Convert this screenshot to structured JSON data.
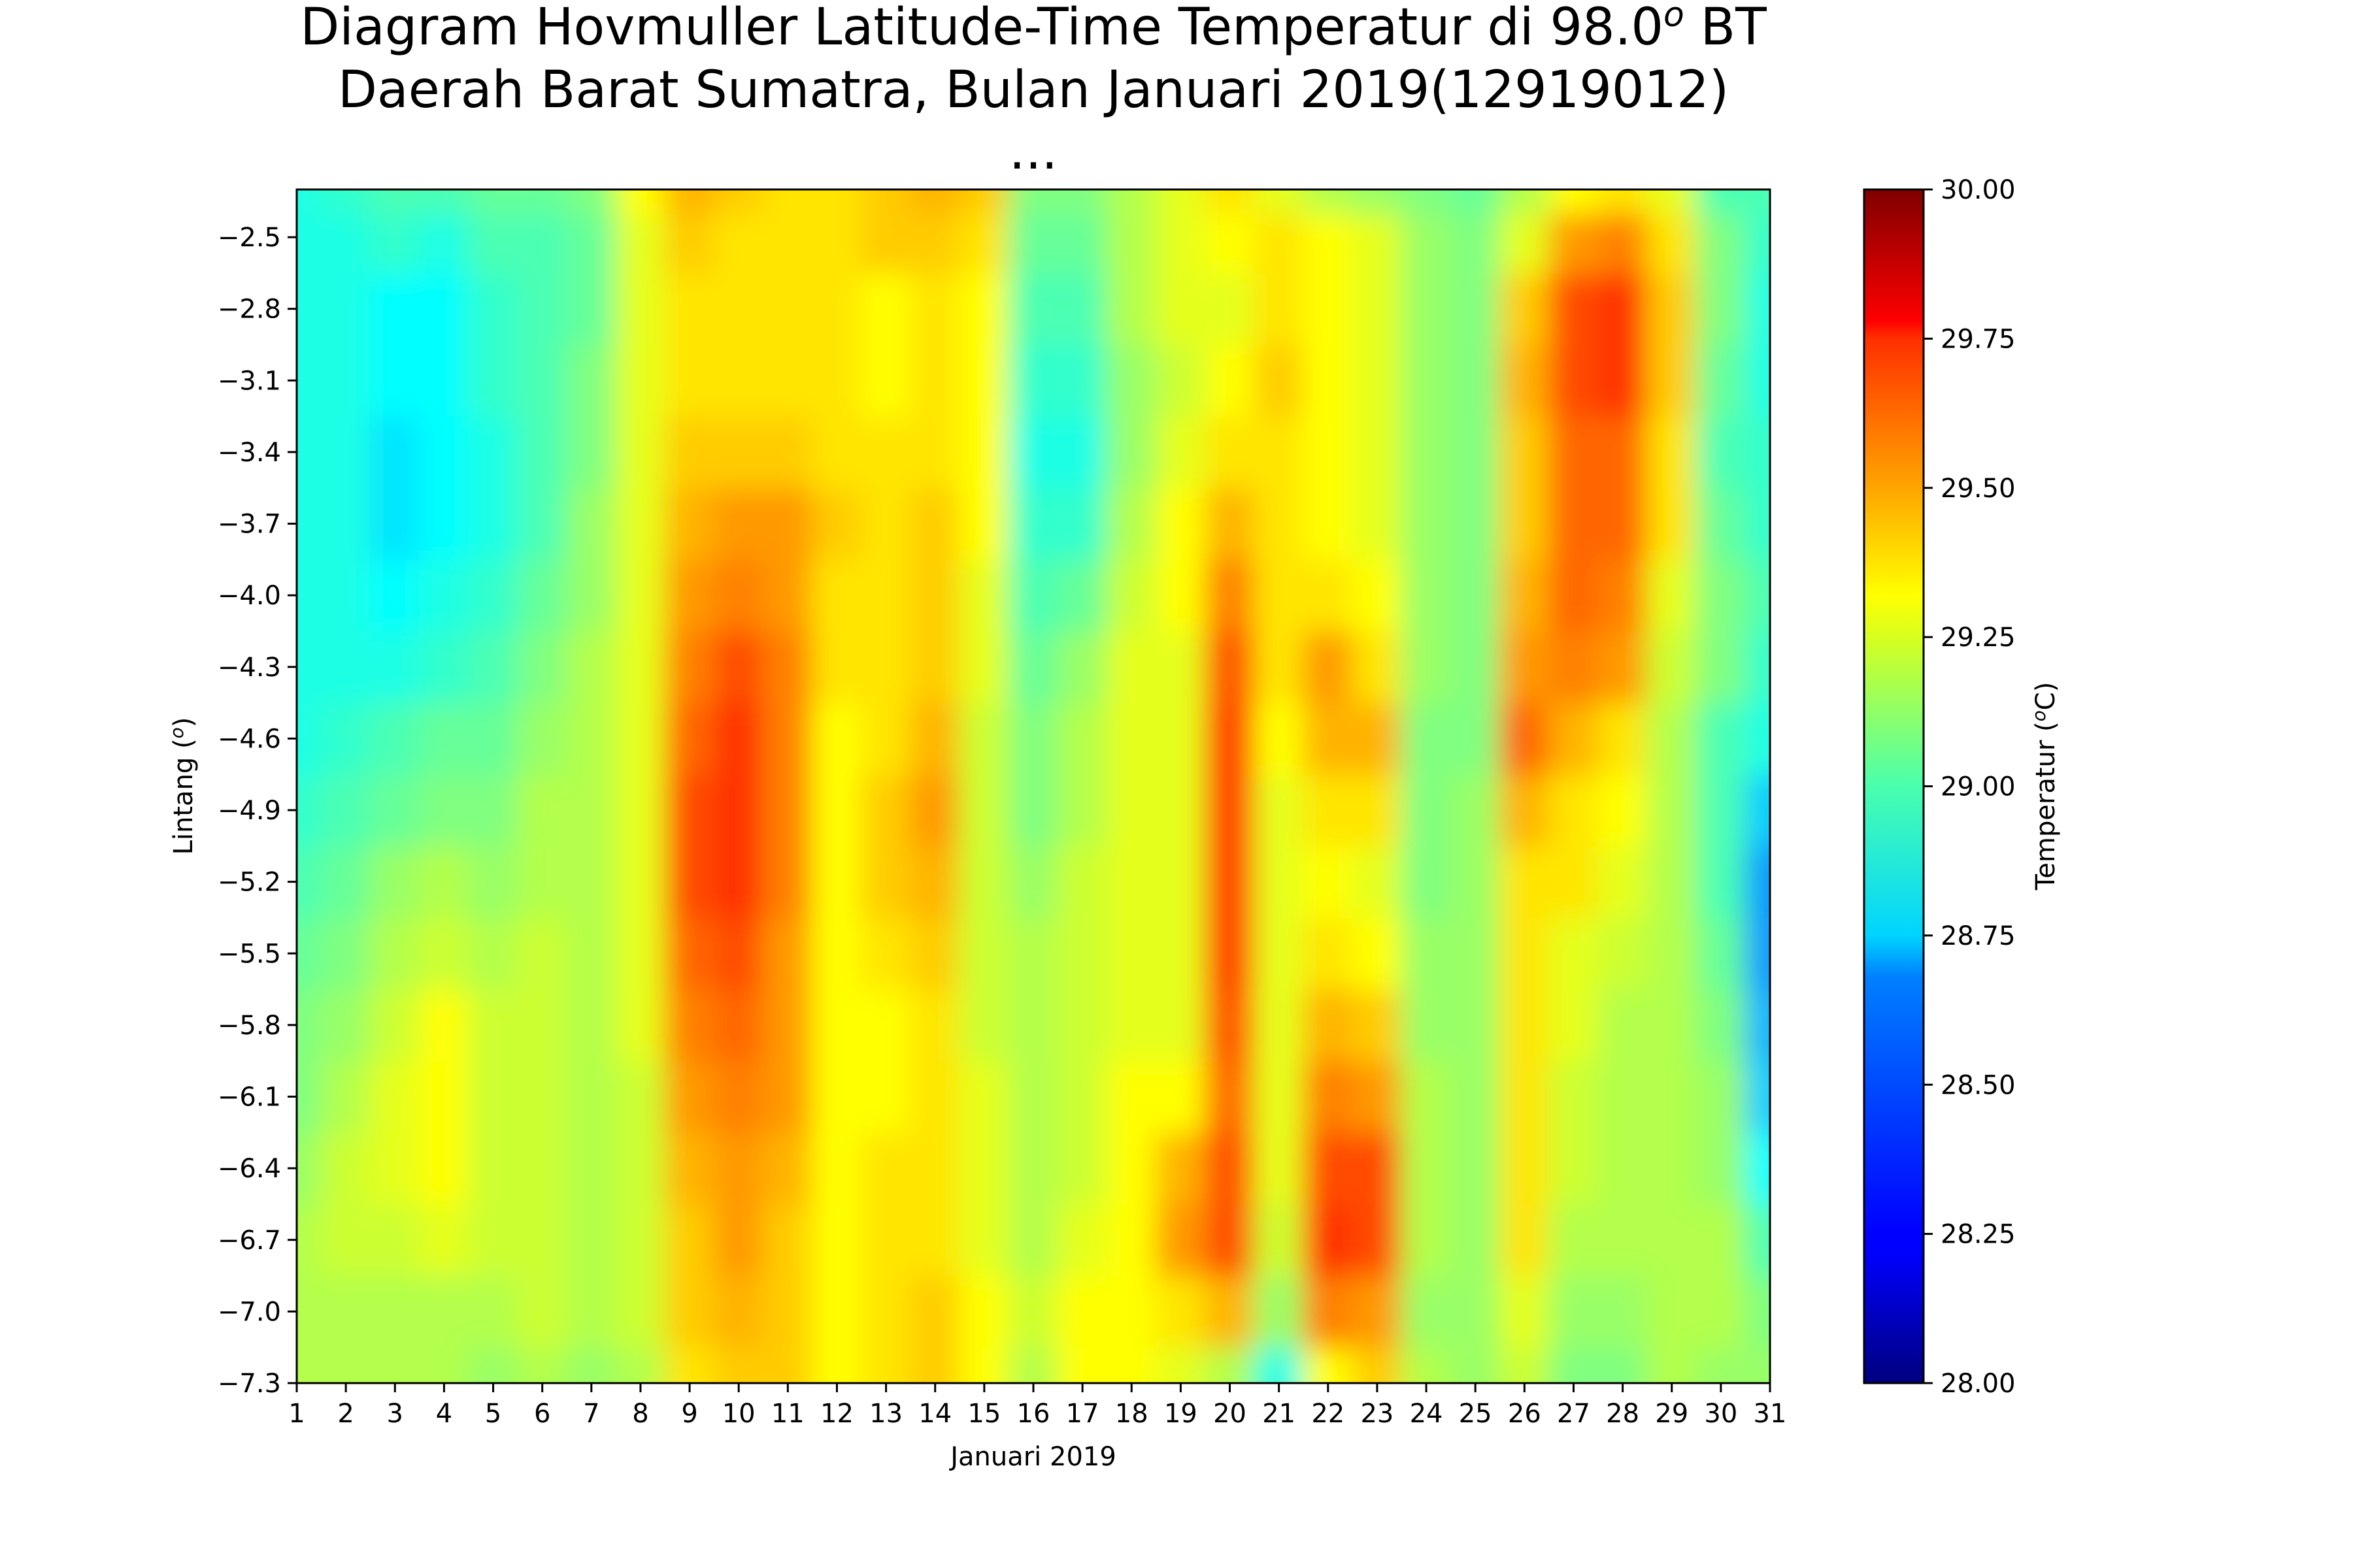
{
  "chart_data": {
    "type": "heatmap",
    "title": {
      "line1_main": "Diagram Hovmuller Latitude-Time Temperatur di 98.0",
      "line1_sup": "o",
      "line1_tail": " BT",
      "line2": "Daerah Barat Sumatra, Bulan Januari 2019(12919012)",
      "line3": "..."
    },
    "xlabel": "Januari 2019",
    "ylabel_main": "Lintang (",
    "ylabel_sup": "o",
    "ylabel_tail": ")",
    "x_ticks": [
      "1",
      "2",
      "3",
      "4",
      "5",
      "6",
      "7",
      "8",
      "9",
      "10",
      "11",
      "12",
      "13",
      "14",
      "15",
      "16",
      "17",
      "18",
      "19",
      "20",
      "21",
      "22",
      "23",
      "24",
      "25",
      "26",
      "27",
      "28",
      "29",
      "30",
      "31"
    ],
    "x_range": [
      1,
      31
    ],
    "y_ticks": [
      "−2.5",
      "−2.8",
      "−3.1",
      "−3.4",
      "−3.7",
      "−4.0",
      "−4.3",
      "−4.6",
      "−4.9",
      "−5.2",
      "−5.5",
      "−5.8",
      "−6.1",
      "−6.4",
      "−6.7",
      "−7.0",
      "−7.3"
    ],
    "y_tick_values": [
      -2.5,
      -2.8,
      -3.1,
      -3.4,
      -3.7,
      -4.0,
      -4.3,
      -4.6,
      -4.9,
      -5.2,
      -5.5,
      -5.8,
      -6.1,
      -6.4,
      -6.7,
      -7.0,
      -7.3
    ],
    "y_range": [
      -7.3,
      -2.3
    ],
    "colorbar": {
      "label_main": "Temperatur (",
      "label_sup": "o",
      "label_tail": "C)",
      "ticks": [
        "28.00",
        "28.25",
        "28.50",
        "28.75",
        "29.00",
        "29.25",
        "29.50",
        "29.75",
        "30.00"
      ],
      "tick_values": [
        28.0,
        28.25,
        28.5,
        28.75,
        29.0,
        29.25,
        29.5,
        29.75,
        30.0
      ],
      "range": [
        28.0,
        30.0
      ],
      "colormap": "jet"
    },
    "y_grid": [
      -7.3,
      -7.0,
      -6.7,
      -6.4,
      -6.1,
      -5.8,
      -5.5,
      -5.2,
      -4.9,
      -4.6,
      -4.3,
      -4.0,
      -3.7,
      -3.4,
      -3.1,
      -2.8,
      -2.5,
      -2.3
    ],
    "days": [
      1,
      2,
      3,
      4,
      5,
      6,
      7,
      8,
      9,
      10,
      11,
      12,
      13,
      14,
      15,
      16,
      17,
      18,
      19,
      20,
      21,
      22,
      23,
      24,
      25,
      26,
      27,
      28,
      29,
      30,
      31
    ],
    "temperature_rows": [
      [
        29.1,
        29.1,
        29.1,
        29.1,
        29.05,
        29.1,
        29.05,
        29.1,
        29.3,
        29.35,
        29.35,
        29.25,
        29.3,
        29.35,
        29.25,
        29.1,
        29.25,
        29.25,
        29.2,
        29.1,
        28.8,
        29.25,
        29.35,
        29.1,
        29.05,
        29.15,
        29.0,
        29.0,
        29.1,
        29.05,
        29.05
      ],
      [
        29.1,
        29.1,
        29.1,
        29.1,
        29.1,
        29.15,
        29.1,
        29.15,
        29.35,
        29.4,
        29.35,
        29.25,
        29.3,
        29.35,
        29.25,
        29.15,
        29.25,
        29.25,
        29.3,
        29.4,
        29.05,
        29.5,
        29.45,
        29.05,
        29.05,
        29.2,
        29.05,
        29.05,
        29.1,
        29.1,
        29.0
      ],
      [
        29.1,
        29.15,
        29.15,
        29.2,
        29.15,
        29.15,
        29.1,
        29.15,
        29.35,
        29.45,
        29.35,
        29.25,
        29.3,
        29.3,
        29.2,
        29.1,
        29.2,
        29.25,
        29.45,
        29.6,
        29.15,
        29.65,
        29.6,
        29.1,
        29.05,
        29.3,
        29.1,
        29.1,
        29.1,
        29.1,
        28.9
      ],
      [
        29.05,
        29.15,
        29.2,
        29.25,
        29.15,
        29.15,
        29.1,
        29.15,
        29.4,
        29.45,
        29.4,
        29.25,
        29.3,
        29.3,
        29.2,
        29.1,
        29.15,
        29.25,
        29.4,
        29.6,
        29.2,
        29.6,
        29.6,
        29.1,
        29.05,
        29.3,
        29.15,
        29.1,
        29.1,
        29.05,
        28.75
      ],
      [
        29.0,
        29.1,
        29.2,
        29.25,
        29.15,
        29.15,
        29.1,
        29.15,
        29.45,
        29.5,
        29.45,
        29.25,
        29.25,
        29.3,
        29.2,
        29.1,
        29.15,
        29.25,
        29.25,
        29.55,
        29.2,
        29.5,
        29.45,
        29.1,
        29.05,
        29.3,
        29.15,
        29.1,
        29.1,
        29.05,
        28.65
      ],
      [
        29.0,
        29.05,
        29.15,
        29.25,
        29.15,
        29.15,
        29.1,
        29.2,
        29.5,
        29.55,
        29.45,
        29.25,
        29.25,
        29.3,
        29.15,
        29.1,
        29.15,
        29.2,
        29.2,
        29.6,
        29.2,
        29.4,
        29.35,
        29.05,
        29.05,
        29.3,
        29.2,
        29.1,
        29.1,
        29.0,
        28.6
      ],
      [
        28.95,
        29.0,
        29.1,
        29.15,
        29.1,
        29.15,
        29.1,
        29.2,
        29.55,
        29.6,
        29.45,
        29.25,
        29.3,
        29.35,
        29.15,
        29.1,
        29.15,
        29.2,
        29.2,
        29.65,
        29.2,
        29.3,
        29.25,
        29.05,
        29.05,
        29.3,
        29.2,
        29.15,
        29.1,
        28.95,
        28.55
      ],
      [
        28.9,
        28.95,
        29.05,
        29.1,
        29.05,
        29.1,
        29.1,
        29.2,
        29.6,
        29.65,
        29.5,
        29.25,
        29.35,
        29.4,
        29.15,
        29.05,
        29.15,
        29.2,
        29.2,
        29.65,
        29.2,
        29.25,
        29.2,
        29.0,
        29.05,
        29.3,
        29.3,
        29.2,
        29.1,
        28.9,
        28.55
      ],
      [
        28.85,
        28.9,
        28.95,
        29.0,
        29.0,
        29.1,
        29.1,
        29.2,
        29.6,
        29.65,
        29.5,
        29.25,
        29.35,
        29.45,
        29.15,
        29.0,
        29.1,
        29.2,
        29.2,
        29.65,
        29.2,
        29.3,
        29.3,
        29.0,
        29.05,
        29.4,
        29.3,
        29.25,
        29.1,
        28.9,
        28.65
      ],
      [
        28.8,
        28.85,
        28.9,
        28.95,
        28.95,
        29.05,
        29.1,
        29.2,
        29.55,
        29.65,
        29.5,
        29.25,
        29.3,
        29.4,
        29.15,
        29.0,
        29.1,
        29.2,
        29.2,
        29.65,
        29.25,
        29.4,
        29.4,
        29.0,
        29.0,
        29.55,
        29.4,
        29.3,
        29.1,
        28.9,
        28.8
      ],
      [
        28.8,
        28.8,
        28.8,
        28.85,
        28.9,
        29.0,
        29.1,
        29.2,
        29.5,
        29.6,
        29.5,
        29.3,
        29.3,
        29.35,
        29.2,
        28.95,
        29.05,
        29.2,
        29.2,
        29.6,
        29.3,
        29.45,
        29.3,
        29.05,
        29.0,
        29.45,
        29.5,
        29.45,
        29.15,
        29.0,
        28.85
      ],
      [
        28.8,
        28.8,
        28.75,
        28.8,
        28.85,
        28.95,
        29.05,
        29.2,
        29.45,
        29.5,
        29.45,
        29.3,
        29.3,
        29.35,
        29.2,
        28.9,
        28.95,
        29.15,
        29.25,
        29.5,
        29.3,
        29.3,
        29.25,
        29.05,
        29.0,
        29.4,
        29.55,
        29.5,
        29.2,
        29.0,
        28.9
      ],
      [
        28.8,
        28.8,
        28.7,
        28.75,
        28.8,
        28.9,
        29.05,
        29.2,
        29.4,
        29.45,
        29.45,
        29.35,
        29.3,
        29.35,
        29.25,
        28.85,
        28.85,
        29.1,
        29.25,
        29.4,
        29.3,
        29.25,
        29.2,
        29.05,
        29.0,
        29.35,
        29.55,
        29.55,
        29.3,
        28.95,
        28.85
      ],
      [
        28.8,
        28.8,
        28.7,
        28.75,
        28.8,
        28.9,
        29.0,
        29.2,
        29.35,
        29.35,
        29.35,
        29.3,
        29.3,
        29.3,
        29.25,
        28.8,
        28.8,
        29.05,
        29.2,
        29.3,
        29.3,
        29.25,
        29.2,
        29.05,
        29.0,
        29.35,
        29.55,
        29.55,
        29.3,
        28.9,
        28.85
      ],
      [
        28.8,
        28.8,
        28.75,
        28.75,
        28.85,
        28.9,
        29.0,
        29.2,
        29.3,
        29.3,
        29.3,
        29.3,
        29.25,
        29.3,
        29.25,
        28.85,
        28.85,
        29.05,
        29.15,
        29.25,
        29.35,
        29.25,
        29.2,
        29.05,
        29.0,
        29.4,
        29.6,
        29.65,
        29.35,
        28.95,
        28.8
      ],
      [
        28.8,
        28.8,
        28.75,
        28.75,
        28.85,
        28.9,
        28.95,
        29.2,
        29.3,
        29.3,
        29.3,
        29.3,
        29.25,
        29.3,
        29.25,
        28.9,
        28.9,
        29.1,
        29.2,
        29.2,
        29.3,
        29.25,
        29.2,
        29.05,
        29.0,
        29.35,
        29.6,
        29.65,
        29.35,
        29.0,
        28.8
      ],
      [
        28.8,
        28.8,
        28.85,
        28.8,
        28.9,
        28.9,
        28.95,
        29.2,
        29.35,
        29.3,
        29.3,
        29.3,
        29.35,
        29.35,
        29.3,
        28.95,
        28.95,
        29.1,
        29.2,
        29.25,
        29.3,
        29.25,
        29.2,
        29.05,
        29.0,
        29.2,
        29.45,
        29.5,
        29.3,
        29.0,
        28.85
      ],
      [
        28.8,
        28.85,
        28.9,
        28.9,
        28.95,
        28.95,
        29.0,
        29.25,
        29.4,
        29.35,
        29.3,
        29.3,
        29.35,
        29.4,
        29.35,
        29.0,
        29.0,
        29.1,
        29.2,
        29.3,
        29.2,
        29.1,
        29.05,
        29.0,
        28.95,
        29.1,
        29.25,
        29.3,
        29.2,
        28.9,
        28.9
      ]
    ],
    "grid": false,
    "legend": "colorbar-right"
  }
}
